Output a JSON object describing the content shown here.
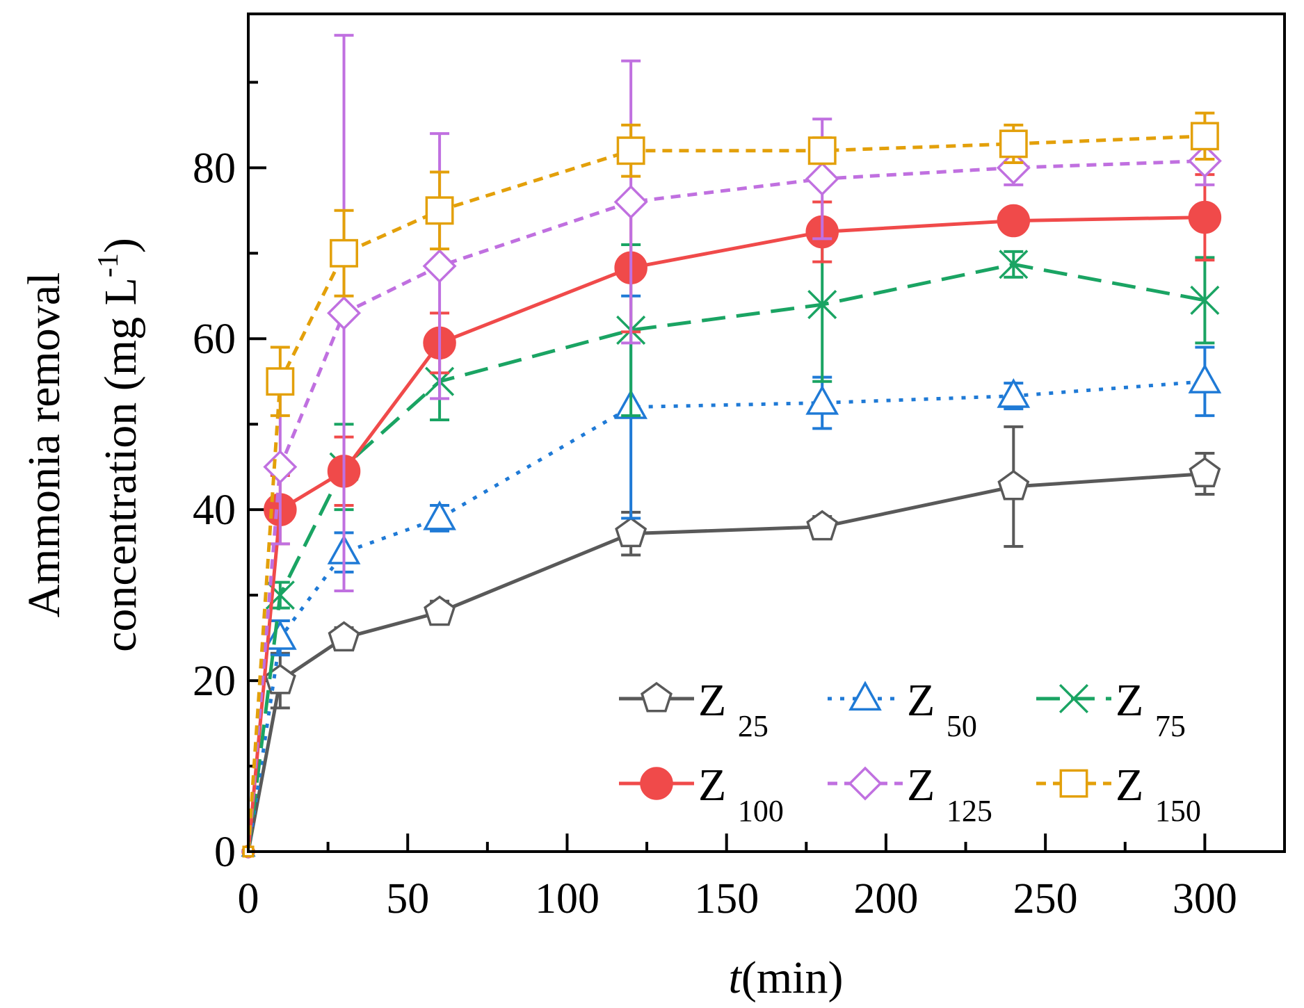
{
  "chart_data": {
    "type": "line",
    "xlabel_italic": "t",
    "xlabel_rest": "(min)",
    "ylabel_line1": "Ammonia removal",
    "ylabel_line2_main": "concentration (mg L",
    "ylabel_line2_sup": "-1",
    "ylabel_line2_end": ")",
    "xlim": [
      0,
      325
    ],
    "ylim": [
      0,
      98
    ],
    "x_major_ticks": [
      0,
      50,
      100,
      150,
      200,
      250,
      300
    ],
    "x_tick_labels": [
      "0",
      "50",
      "100",
      "150",
      "200",
      "250",
      "300"
    ],
    "x_minor_ticks": [
      25,
      75,
      125,
      175,
      225,
      275
    ],
    "y_major_ticks": [
      0,
      20,
      40,
      60,
      80
    ],
    "y_tick_labels": [
      "0",
      "20",
      "40",
      "60",
      "80"
    ],
    "y_minor_ticks": [
      10,
      30,
      50,
      70,
      90
    ],
    "x": [
      0,
      10,
      30,
      60,
      120,
      180,
      240,
      300
    ],
    "series": [
      {
        "name_main": "Z",
        "name_sub": "25",
        "color": "#595959",
        "marker": "pentagon",
        "dash": "solid",
        "values": [
          0,
          20,
          25,
          28,
          37.2,
          38,
          42.7,
          44.2
        ],
        "errors": [
          0,
          3.2,
          1.2,
          1.3,
          2.5,
          1.2,
          7,
          2.4
        ]
      },
      {
        "name_main": "Z",
        "name_sub": "50",
        "color": "#1f7ad6",
        "marker": "triangle",
        "dash": "dot",
        "values": [
          0,
          25,
          35,
          39,
          52,
          52.5,
          53.3,
          55
        ],
        "errors": [
          0,
          2,
          2.3,
          1.5,
          13,
          3,
          1.5,
          4
        ]
      },
      {
        "name_main": "Z",
        "name_sub": "75",
        "color": "#1aa463",
        "marker": "x",
        "dash": "longdash",
        "values": [
          0,
          30,
          45,
          55,
          61,
          64,
          68.7,
          64.5
        ],
        "errors": [
          0,
          1.5,
          5,
          4.5,
          10,
          9,
          1.5,
          5
        ]
      },
      {
        "name_main": "Z",
        "name_sub": "100",
        "color": "#f04a4a",
        "marker": "circle",
        "dash": "solid",
        "values": [
          0,
          40,
          44.5,
          59.5,
          68.3,
          72.5,
          73.8,
          74.2
        ],
        "errors": [
          0,
          4,
          4,
          3.5,
          7.5,
          3.5,
          1,
          5
        ]
      },
      {
        "name_main": "Z",
        "name_sub": "125",
        "color": "#c070e0",
        "marker": "diamond",
        "dash": "shortdash",
        "values": [
          0,
          45,
          63,
          68.5,
          76,
          78.7,
          80,
          80.8
        ],
        "errors": [
          0,
          9,
          32.5,
          15.5,
          16.5,
          7,
          2,
          2.8
        ]
      },
      {
        "name_main": "Z",
        "name_sub": "150",
        "color": "#e3a00a",
        "marker": "square",
        "dash": "shortdash",
        "values": [
          0,
          55,
          70,
          75,
          82,
          82,
          82.8,
          83.7
        ],
        "errors": [
          0,
          4,
          5,
          4.5,
          3,
          1.5,
          2.2,
          2.7
        ]
      }
    ]
  }
}
